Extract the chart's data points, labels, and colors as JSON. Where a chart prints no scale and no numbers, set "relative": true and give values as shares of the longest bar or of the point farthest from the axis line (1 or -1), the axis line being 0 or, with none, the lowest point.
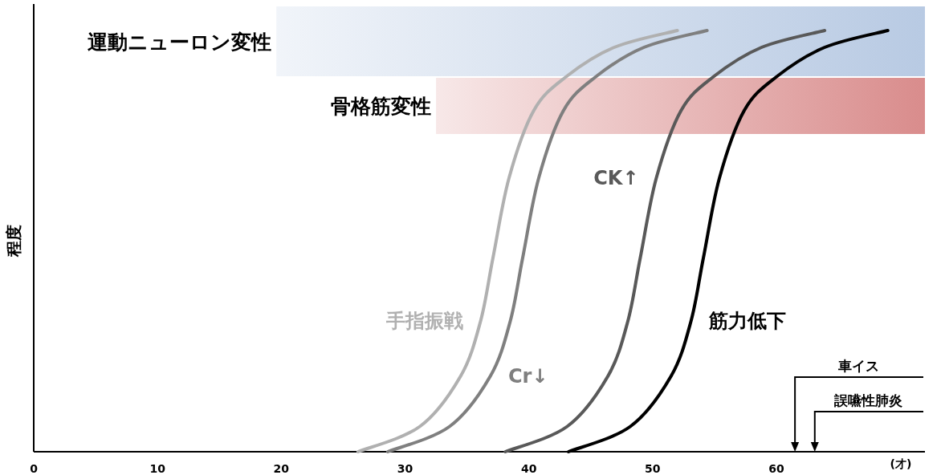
{
  "chart_data": {
    "type": "line",
    "relative": true,
    "xlabel": "(才)",
    "ylabel": "程度",
    "xlim": [
      0,
      72
    ],
    "xticks": [
      0,
      10,
      20,
      30,
      40,
      50,
      60
    ],
    "series": [
      {
        "name": "手指振戦",
        "color": "#b0b0b0",
        "x": [
          26.2,
          31.2,
          34.5,
          36.1,
          37.1,
          38.4,
          40.4,
          43.0,
          46.9,
          52.0
        ],
        "values": [
          0,
          0.06,
          0.18,
          0.31,
          0.46,
          0.65,
          0.81,
          0.89,
          0.96,
          1.0
        ]
      },
      {
        "name": "Cr↓",
        "color": "#7f7f7f",
        "x": [
          28.6,
          33.6,
          36.9,
          38.5,
          39.5,
          40.8,
          42.8,
          45.4,
          49.3,
          54.4
        ],
        "values": [
          0,
          0.06,
          0.18,
          0.31,
          0.46,
          0.65,
          0.81,
          0.89,
          0.96,
          1.0
        ]
      },
      {
        "name": "CK↑",
        "color": "#595959",
        "x": [
          38.1,
          43.1,
          46.4,
          48.0,
          49.0,
          50.3,
          52.3,
          54.9,
          58.8,
          63.9
        ],
        "values": [
          0,
          0.06,
          0.18,
          0.31,
          0.46,
          0.65,
          0.81,
          0.89,
          0.96,
          1.0
        ]
      },
      {
        "name": "筋力低下",
        "color": "#000000",
        "x": [
          43.2,
          48.2,
          51.5,
          53.1,
          54.1,
          55.4,
          57.4,
          60.0,
          63.9,
          69.0
        ],
        "values": [
          0,
          0.06,
          0.18,
          0.31,
          0.46,
          0.65,
          0.81,
          0.89,
          0.96,
          1.0
        ]
      }
    ],
    "bands": [
      {
        "axis": "x",
        "from": 19.6,
        "to": 72,
        "label": "運動ニューロン変性",
        "color": "#b8cae3"
      },
      {
        "axis": "x",
        "from": 32.5,
        "to": 72,
        "label": "骨格筋変性",
        "color": "#d98c8c"
      }
    ],
    "ref_lines": [
      {
        "axis": "x",
        "value": 61.5,
        "label": "車イス"
      },
      {
        "axis": "x",
        "value": 63.1,
        "label": "誤嚥性肺炎"
      }
    ]
  }
}
